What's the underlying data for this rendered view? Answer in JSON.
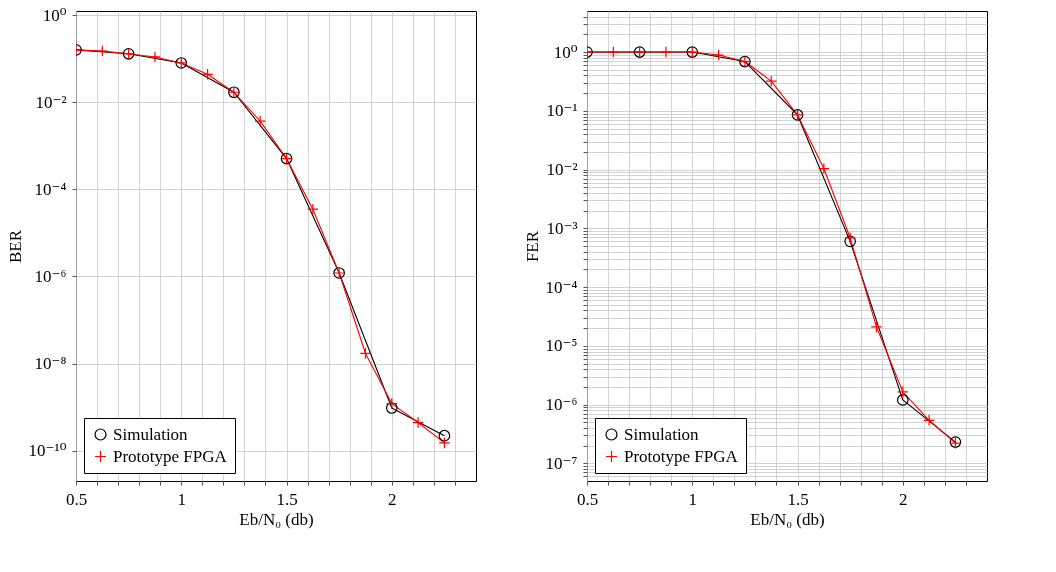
{
  "chart_data": [
    {
      "type": "line",
      "xlabel": "Eb/N₀ (db)",
      "ylabel": "BER",
      "log": "y",
      "grid": true,
      "legend": "bottom left",
      "xlim": [
        0.5,
        2.4
      ],
      "xticks": [
        0.5,
        {
          "value": 0.6,
          "label": null
        },
        {
          "value": 0.7,
          "label": null
        },
        {
          "value": 0.8,
          "label": null
        },
        {
          "value": 0.9,
          "label": null
        },
        1,
        {
          "value": 1.1,
          "label": null
        },
        {
          "value": 1.2,
          "label": null
        },
        {
          "value": 1.3,
          "label": null
        },
        {
          "value": 1.4,
          "label": null
        },
        1.5,
        {
          "value": 1.6,
          "label": null
        },
        {
          "value": 1.7,
          "label": null
        },
        {
          "value": 1.8,
          "label": null
        },
        {
          "value": 1.9,
          "label": null
        },
        2,
        {
          "value": 2.1,
          "label": null
        },
        {
          "value": 2.2,
          "label": null
        },
        {
          "value": 2.3,
          "label": null
        }
      ],
      "ylim": [
        2e-11,
        1.25
      ],
      "yticks": [
        {
          "value": 1,
          "label": "10⁰"
        },
        {
          "value": 0.01,
          "label": "10⁻²"
        },
        {
          "value": 0.0001,
          "label": "10⁻⁴"
        },
        {
          "value": 1e-06,
          "label": "10⁻⁶"
        },
        {
          "value": 1e-08,
          "label": "10⁻⁸"
        },
        {
          "value": 1e-10,
          "label": "10⁻¹⁰"
        }
      ],
      "series": [
        {
          "name": "Simulation",
          "color": "#000000",
          "marker": "circle",
          "x": [
            0.5,
            0.75,
            1,
            1.25,
            1.5,
            1.75,
            2,
            2.25
          ],
          "values": [
            0.16,
            0.13,
            0.08,
            0.017,
            0.00051,
            1.2e-06,
            9.5e-10,
            2.2e-10
          ]
        },
        {
          "name": "Prototype FPGA",
          "color": "#ff0000",
          "marker": "cross",
          "x": [
            0.5,
            0.625,
            0.75,
            0.875,
            1,
            1.125,
            1.25,
            1.375,
            1.5,
            1.625,
            1.75,
            1.875,
            2,
            2.125,
            2.25
          ],
          "values": [
            0.16,
            0.15,
            0.13,
            0.11,
            0.08,
            0.044,
            0.017,
            0.0037,
            0.00051,
            3.5e-05,
            1.2e-06,
            1.7e-08,
            1.2e-09,
            4.4e-10,
            1.5e-10
          ]
        }
      ]
    },
    {
      "type": "line",
      "xlabel": "Eb/N₀ (db)",
      "ylabel": "FER",
      "log": "y",
      "grid": true,
      "legend": "bottom left",
      "xlim": [
        0.5,
        2.4
      ],
      "xticks": [
        0.5,
        {
          "value": 0.6,
          "label": null
        },
        {
          "value": 0.7,
          "label": null
        },
        {
          "value": 0.8,
          "label": null
        },
        {
          "value": 0.9,
          "label": null
        },
        1,
        {
          "value": 1.1,
          "label": null
        },
        {
          "value": 1.2,
          "label": null
        },
        {
          "value": 1.3,
          "label": null
        },
        {
          "value": 1.4,
          "label": null
        },
        1.5,
        {
          "value": 1.6,
          "label": null
        },
        {
          "value": 1.7,
          "label": null
        },
        {
          "value": 1.8,
          "label": null
        },
        {
          "value": 1.9,
          "label": null
        },
        2,
        {
          "value": 2.1,
          "label": null
        },
        {
          "value": 2.2,
          "label": null
        },
        {
          "value": 2.3,
          "label": null
        }
      ],
      "ylim": [
        5e-08,
        5
      ],
      "yticks": [
        {
          "value": 1,
          "label": "10⁰"
        },
        {
          "value": 0.1,
          "label": "10⁻¹"
        },
        {
          "value": 0.01,
          "label": "10⁻²"
        },
        {
          "value": 0.001,
          "label": "10⁻³"
        },
        {
          "value": 0.0001,
          "label": "10⁻⁴"
        },
        {
          "value": 1e-05,
          "label": "10⁻⁵"
        },
        {
          "value": 1e-06,
          "label": "10⁻⁶"
        },
        {
          "value": 1e-07,
          "label": "10⁻⁷"
        },
        {
          "value": 6e-08,
          "label": null
        },
        {
          "value": 7e-08,
          "label": null
        },
        {
          "value": 8e-08,
          "label": null
        },
        {
          "value": 9e-08,
          "label": null
        },
        {
          "value": 2e-07,
          "label": null
        },
        {
          "value": 3e-07,
          "label": null
        },
        {
          "value": 4e-07,
          "label": null
        },
        {
          "value": 5e-07,
          "label": null
        },
        {
          "value": 6e-07,
          "label": null
        },
        {
          "value": 7e-07,
          "label": null
        },
        {
          "value": 8e-07,
          "label": null
        },
        {
          "value": 9e-07,
          "label": null
        },
        {
          "value": 2e-06,
          "label": null
        },
        {
          "value": 3e-06,
          "label": null
        },
        {
          "value": 4e-06,
          "label": null
        },
        {
          "value": 5e-06,
          "label": null
        },
        {
          "value": 6e-06,
          "label": null
        },
        {
          "value": 7e-06,
          "label": null
        },
        {
          "value": 8e-06,
          "label": null
        },
        {
          "value": 9e-06,
          "label": null
        },
        {
          "value": 2e-05,
          "label": null
        },
        {
          "value": 3e-05,
          "label": null
        },
        {
          "value": 4e-05,
          "label": null
        },
        {
          "value": 5e-05,
          "label": null
        },
        {
          "value": 6e-05,
          "label": null
        },
        {
          "value": 7e-05,
          "label": null
        },
        {
          "value": 8e-05,
          "label": null
        },
        {
          "value": 9e-05,
          "label": null
        },
        {
          "value": 0.0002,
          "label": null
        },
        {
          "value": 0.0003,
          "label": null
        },
        {
          "value": 0.0004,
          "label": null
        },
        {
          "value": 0.0005,
          "label": null
        },
        {
          "value": 0.0006,
          "label": null
        },
        {
          "value": 0.0007,
          "label": null
        },
        {
          "value": 0.0008,
          "label": null
        },
        {
          "value": 0.0009,
          "label": null
        },
        {
          "value": 0.002,
          "label": null
        },
        {
          "value": 0.003,
          "label": null
        },
        {
          "value": 0.004,
          "label": null
        },
        {
          "value": 0.005,
          "label": null
        },
        {
          "value": 0.006,
          "label": null
        },
        {
          "value": 0.007,
          "label": null
        },
        {
          "value": 0.008,
          "label": null
        },
        {
          "value": 0.009,
          "label": null
        },
        {
          "value": 0.02,
          "label": null
        },
        {
          "value": 0.03,
          "label": null
        },
        {
          "value": 0.04,
          "label": null
        },
        {
          "value": 0.05,
          "label": null
        },
        {
          "value": 0.06,
          "label": null
        },
        {
          "value": 0.07,
          "label": null
        },
        {
          "value": 0.08,
          "label": null
        },
        {
          "value": 0.09,
          "label": null
        },
        {
          "value": 0.2,
          "label": null
        },
        {
          "value": 0.3,
          "label": null
        },
        {
          "value": 0.4,
          "label": null
        },
        {
          "value": 0.5,
          "label": null
        },
        {
          "value": 0.6,
          "label": null
        },
        {
          "value": 0.7,
          "label": null
        },
        {
          "value": 0.8,
          "label": null
        },
        {
          "value": 0.9,
          "label": null
        },
        {
          "value": 2,
          "label": null
        },
        {
          "value": 3,
          "label": null
        },
        {
          "value": 4,
          "label": null
        }
      ],
      "series": [
        {
          "name": "Simulation",
          "color": "#000000",
          "marker": "circle",
          "x": [
            0.5,
            0.75,
            1,
            1.25,
            1.5,
            1.75,
            2,
            2.25
          ],
          "values": [
            1,
            1,
            1,
            0.69,
            0.085,
            0.0006,
            1.2e-06,
            2.3e-07
          ]
        },
        {
          "name": "Prototype FPGA",
          "color": "#ff0000",
          "marker": "cross",
          "x": [
            0.5,
            0.625,
            0.75,
            0.875,
            1,
            1.125,
            1.25,
            1.375,
            1.5,
            1.625,
            1.75,
            1.875,
            2,
            2.125,
            2.25
          ],
          "values": [
            1,
            1,
            1,
            1,
            1,
            0.89,
            0.69,
            0.32,
            0.085,
            0.0104,
            0.00069,
            2.1e-05,
            1.65e-06,
            5.4e-07,
            2.2e-07
          ]
        }
      ]
    }
  ]
}
